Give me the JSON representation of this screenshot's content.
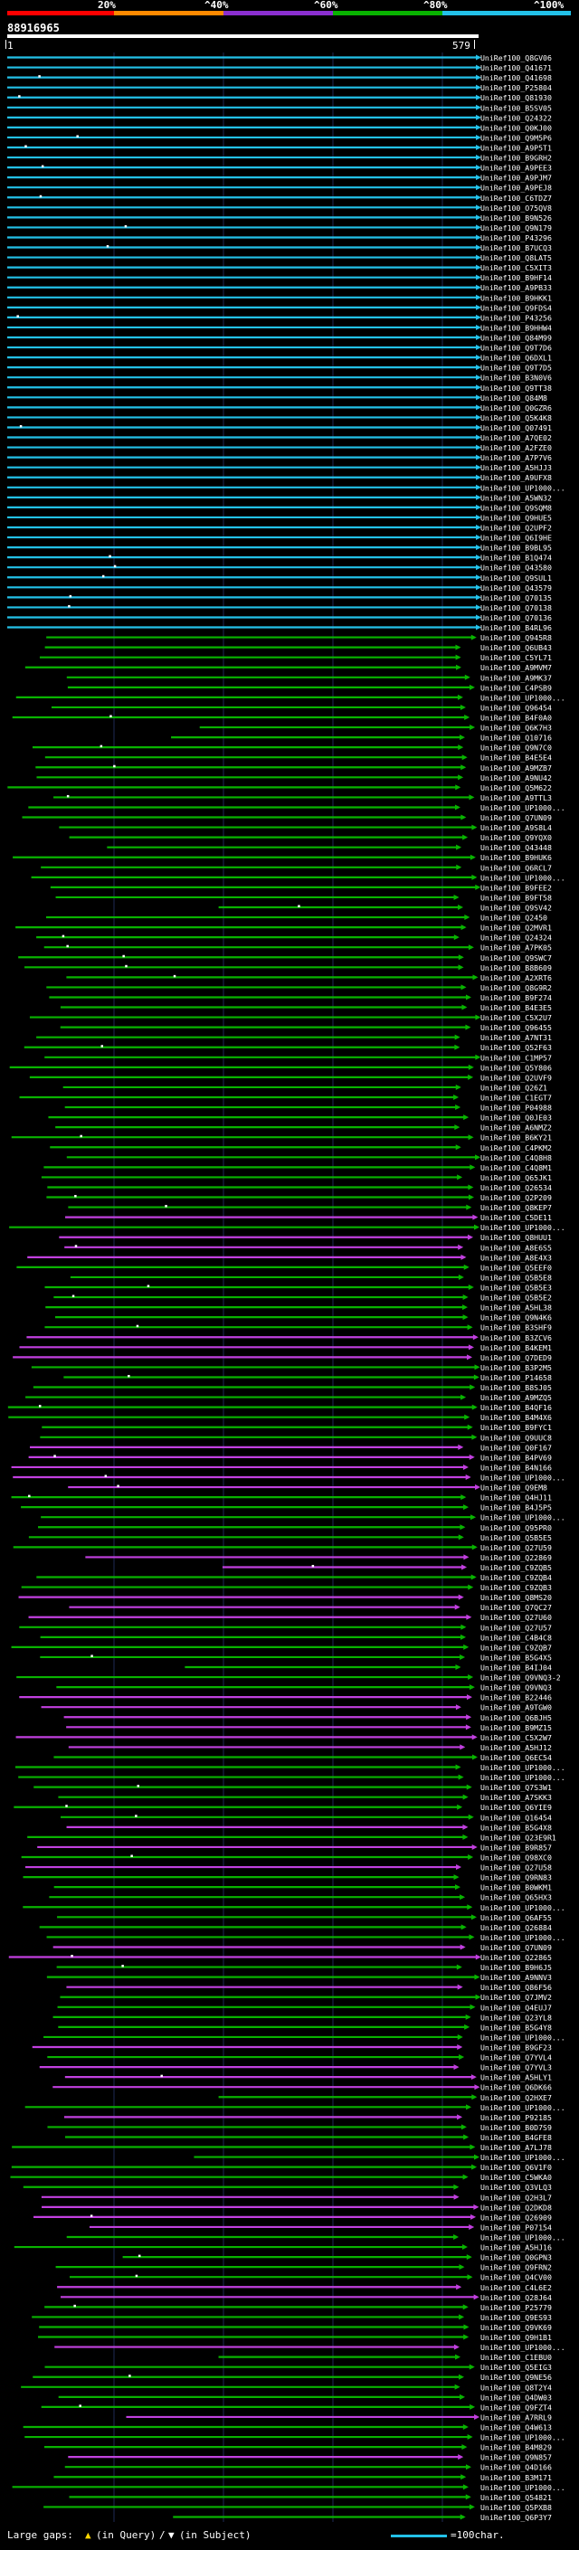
{
  "header": {
    "scale_labels": [
      "20%",
      "^40%",
      "^60%",
      "^80%",
      "^100%"
    ],
    "scale_colors": [
      "#ff0000",
      "#ff8a00",
      "#8b2fd0",
      "#08b300",
      "#23c1e8"
    ],
    "query_id": "88916965",
    "ruler_start": "1",
    "ruler_end": "579"
  },
  "legend": {
    "large_gaps": "Large gaps: ",
    "in_query": "(in Query)",
    "slash": "/",
    "in_subject": "(in Subject)",
    "scale_note": "=100char."
  },
  "colors": {
    "cyan": "#23c1e8",
    "green": "#08b300",
    "purple": "#c23fe0",
    "grid": "#1e2a55"
  },
  "hits": [
    "UniRef100_Q8GV06",
    "UniRef100_Q41671",
    "UniRef100_Q41698",
    "UniRef100_P25804",
    "UniRef100_Q81930",
    "UniRef100_B5SV05",
    "UniRef100_Q24322",
    "UniRef100_Q0KJ00",
    "UniRef100_Q9M5P6",
    "UniRef100_A9P5T1",
    "UniRef100_B9GRH2",
    "UniRef100_A9PEE3",
    "UniRef100_A9PJM7",
    "UniRef100_A9PEJ8",
    "UniRef100_C6TDZ7",
    "UniRef100_O75QV8",
    "UniRef100_B9N526",
    "UniRef100_Q9N179",
    "UniRef100_P43296",
    "UniRef100_B7UCQ3",
    "UniRef100_Q8LAT5",
    "UniRef100_C5XIT3",
    "UniRef100_B9HF14",
    "UniRef100_A9PB33",
    "UniRef100_B9HKK1",
    "UniRef100_Q9FDS4",
    "UniRef100_P43256",
    "UniRef100_B9HHW4",
    "UniRef100_Q84M99",
    "UniRef100_Q9T7D6",
    "UniRef100_Q6DXL1",
    "UniRef100_Q9T7D5",
    "UniRef100_B3N0V6",
    "UniRef100_Q9TT38",
    "UniRef100_Q84M8",
    "UniRef100_Q0GZR6",
    "UniRef100_Q5K4K8",
    "UniRef100_Q07491",
    "UniRef100_A7QE02",
    "UniRef100_A2FZE0",
    "UniRef100_A7P7V6",
    "UniRef100_A5HJJ3",
    "UniRef100_A9UFX8",
    "UniRef100_UP1000...",
    "UniRef100_A5WN32",
    "UniRef100_Q9SQM8",
    "UniRef100_Q9HUE5",
    "UniRef100_Q2UPF2",
    "UniRef100_Q6I9HE",
    "UniRef100_B9BL95",
    "UniRef100_B1Q474",
    "UniRef100_Q43580",
    "UniRef100_Q9SUL1",
    "UniRef100_Q43579",
    "UniRef100_Q70135",
    "UniRef100_Q70138",
    "UniRef100_Q70136",
    "UniRef100_B4RL96",
    "UniRef100_Q945R8",
    "UniRef100_Q6UB43",
    "UniRef100_C5YL71",
    "UniRef100_A9MVM7",
    "UniRef100_A9MK37",
    "UniRef100_C4PSB9",
    "UniRef100_UP1000...",
    "UniRef100_Q96454",
    "UniRef100_B4F0A0",
    "UniRef100_Q6K7H3",
    "UniRef100_Q10716",
    "UniRef100_Q9N7C0",
    "UniRef100_B4E5E4",
    "UniRef100_A9MZB7",
    "UniRef100_A9NU42",
    "UniRef100_Q5M622",
    "UniRef100_A9TTL3",
    "UniRef100_UP1000...",
    "UniRef100_Q7UN09",
    "UniRef100_A9S8L4",
    "UniRef100_Q9YQX0",
    "UniRef100_Q43448",
    "UniRef100_B9HUK6",
    "UniRef100_Q6RCL7",
    "UniRef100_UP1000...",
    "UniRef100_B9FEE2",
    "UniRef100_B9FT58",
    "UniRef100_Q9SV42",
    "UniRef100_Q2450",
    "UniRef100_Q2MVR1",
    "UniRef100_Q24324",
    "UniRef100_A7PK05",
    "UniRef100_Q9SWC7",
    "UniRef100_B8B609",
    "UniRef100_A2XRT6",
    "UniRef100_Q8G9R2",
    "UniRef100_B9F274",
    "UniRef100_B4E3E5",
    "UniRef100_C5X2U7",
    "UniRef100_Q96455",
    "UniRef100_A7NT31",
    "UniRef100_Q52F63",
    "UniRef100_C1MP57",
    "UniRef100_Q5Y806",
    "UniRef100_Q2UVF9",
    "UniRef100_Q26Z1",
    "UniRef100_C1EGT7",
    "UniRef100_P04988",
    "UniRef100_Q0JE03",
    "UniRef100_A6NMZ2",
    "UniRef100_B6KY21",
    "UniRef100_C4PKM2",
    "UniRef100_C4Q8H8",
    "UniRef100_C4Q8M1",
    "UniRef100_Q65JK1",
    "UniRef100_Q26534",
    "UniRef100_Q2P209",
    "UniRef100_Q8KEP7",
    "UniRef100_C5DE11",
    "UniRef100_UP1000...",
    "UniRef100_Q8HUU1",
    "UniRef100_A8E6S5",
    "UniRef100_A8E4X3",
    "UniRef100_Q5EEF0",
    "UniRef100_Q5B5E8",
    "UniRef100_Q5B5E3",
    "UniRef100_Q5B5E2",
    "UniRef100_A5HL38",
    "UniRef100_Q9N4K6",
    "UniRef100_B3SHF9",
    "UniRef100_B3ZCV6",
    "UniRef100_B4KEM1",
    "UniRef100_Q7DED9",
    "UniRef100_B3P2M5",
    "UniRef100_P14658",
    "UniRef100_B8SJ05",
    "UniRef100_A9MZQ5",
    "UniRef100_B4QF16",
    "UniRef100_B4M4X6",
    "UniRef100_B9FYC1",
    "UniRef100_Q9UUC8",
    "UniRef100_Q0F167",
    "UniRef100_B4PV69",
    "UniRef100_B4N166",
    "UniRef100_UP1000...",
    "UniRef100_Q9EM8",
    "UniRef100_Q4HJ11",
    "UniRef100_B4J5P5",
    "UniRef100_UP1000...",
    "UniRef100_Q95PR0",
    "UniRef100_Q5B5E5",
    "UniRef100_Q27U59",
    "UniRef100_Q22869",
    "UniRef100_C9ZQB5",
    "UniRef100_C9ZQB4",
    "UniRef100_C9ZQB3",
    "UniRef100_Q8MS20",
    "UniRef100_Q7QC27",
    "UniRef100_Q27U60",
    "UniRef100_Q27U57",
    "UniRef100_C4B4C8",
    "UniRef100_C9ZQB7",
    "UniRef100_B5G4X5",
    "UniRef100_B4IJ04",
    "UniRef100_Q9VNQ3-2",
    "UniRef100_Q9VNQ3",
    "UniRef100_B22446",
    "UniRef100_A9TGW0",
    "UniRef100_Q6BJH5",
    "UniRef100_B9MZ15",
    "UniRef100_C5X2W7",
    "UniRef100_A5HJ12",
    "UniRef100_Q6EC54",
    "UniRef100_UP1000...",
    "UniRef100_UP1000...",
    "UniRef100_Q7S3W1",
    "UniRef100_A7SKK3",
    "UniRef100_Q6YIE9",
    "UniRef100_Q16454",
    "UniRef100_B5G4X8",
    "UniRef100_Q23E9R1",
    "UniRef100_B9R857",
    "UniRef100_Q98XC0",
    "UniRef100_Q27U58",
    "UniRef100_Q9RN83",
    "UniRef100_B0WKM1",
    "UniRef100_Q65HX3",
    "UniRef100_UP1000...",
    "UniRef100_Q6AF55",
    "UniRef100_Q26884",
    "UniRef100_UP1000...",
    "UniRef100_Q7UN09",
    "UniRef100_Q22865",
    "UniRef100_B9H6J5",
    "UniRef100_A9NNV3",
    "UniRef100_Q86F56",
    "UniRef100_Q7JMV2",
    "UniRef100_Q4EUJ7",
    "UniRef100_Q23YL8",
    "UniRef100_B5G4Y8",
    "UniRef100_UP1000...",
    "UniRef100_B9GF23",
    "UniRef100_Q7YVL4",
    "UniRef100_Q7YVL3",
    "UniRef100_A5HLY1",
    "UniRef100_Q6DK66",
    "UniRef100_Q2HXE7",
    "UniRef100_UP1000...",
    "UniRef100_P92185",
    "UniRef100_B0D7S9",
    "UniRef100_B4GFE8",
    "UniRef100_A7LJ78",
    "UniRef100_UP1000...",
    "UniRef100_Q6V1F0",
    "UniRef100_C5WKA0",
    "UniRef100_Q3VLQ3",
    "UniRef100_Q2H3L7",
    "UniRef100_Q2DKD8",
    "UniRef100_Q26909",
    "UniRef100_P07154",
    "UniRef100_UP1000...",
    "UniRef100_A5HJ16",
    "UniRef100_Q0GPN3",
    "UniRef100_Q9FRN2",
    "UniRef100_Q4CV00",
    "UniRef100_C4L6E2",
    "UniRef100_Q28J64",
    "UniRef100_P25779",
    "UniRef100_Q9ES93",
    "UniRef100_Q9VK69",
    "UniRef100_Q9H1B1",
    "UniRef100_UP1000...",
    "UniRef100_C1EBU0",
    "UniRef100_Q5EIG3",
    "UniRef100_Q9NE56",
    "UniRef100_Q8T2Y4",
    "UniRef100_Q4DW03",
    "UniRef100_Q9FZT4",
    "UniRef100_A7RRL9",
    "UniRef100_Q4W613",
    "UniRef100_UP1000...",
    "UniRef100_B4M829",
    "UniRef100_Q9N857",
    "UniRef100_Q4D166",
    "UniRef100_B3M171",
    "UniRef100_UP1000...",
    "UniRef100_Q54821",
    "UniRef100_Q5PXB8",
    "UniRef100_Q6P3Y7"
  ]
}
